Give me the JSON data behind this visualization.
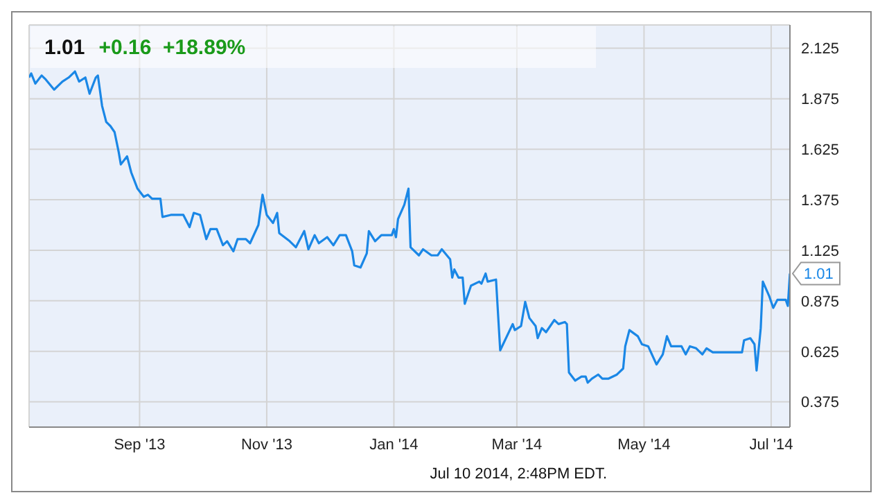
{
  "chart_data": {
    "type": "line",
    "title": "1.01",
    "subtitle": "+0.16  +18.89%",
    "x": [
      "2013-07-10",
      "2013-07-11",
      "2013-07-13",
      "2013-07-16",
      "2013-07-18",
      "2013-07-22",
      "2013-07-26",
      "2013-07-29",
      "2013-08-01",
      "2013-08-03",
      "2013-08-06",
      "2013-08-08",
      "2013-08-11",
      "2013-08-12",
      "2013-08-14",
      "2013-08-16",
      "2013-08-18",
      "2013-08-20",
      "2013-08-22",
      "2013-08-23",
      "2013-08-26",
      "2013-08-28",
      "2013-08-31",
      "2013-09-03",
      "2013-09-05",
      "2013-09-07",
      "2013-09-11",
      "2013-09-12",
      "2013-09-16",
      "2013-09-22",
      "2013-09-25",
      "2013-09-27",
      "2013-09-30",
      "2013-10-03",
      "2013-10-05",
      "2013-10-08",
      "2013-10-11",
      "2013-10-13",
      "2013-10-16",
      "2013-10-18",
      "2013-10-22",
      "2013-10-24",
      "2013-10-28",
      "2013-10-30",
      "2013-11-01",
      "2013-11-04",
      "2013-11-06",
      "2013-11-07",
      "2013-11-12",
      "2013-11-15",
      "2013-11-19",
      "2013-11-21",
      "2013-11-24",
      "2013-11-26",
      "2013-11-30",
      "2013-12-03",
      "2013-12-06",
      "2013-12-09",
      "2013-12-12",
      "2013-12-13",
      "2013-12-16",
      "2013-12-19",
      "2013-12-20",
      "2013-12-23",
      "2013-12-26",
      "2013-12-31",
      "2014-01-01",
      "2014-01-02",
      "2014-01-03",
      "2014-01-06",
      "2014-01-08",
      "2014-01-09",
      "2014-01-13",
      "2014-01-15",
      "2014-01-19",
      "2014-01-22",
      "2014-01-24",
      "2014-01-28",
      "2014-01-29",
      "2014-01-30",
      "2014-02-01",
      "2014-02-03",
      "2014-02-04",
      "2014-02-07",
      "2014-02-11",
      "2014-02-12",
      "2014-02-14",
      "2014-02-15",
      "2014-02-19",
      "2014-02-21",
      "2014-02-27",
      "2014-02-28",
      "2014-03-03",
      "2014-03-05",
      "2014-03-07",
      "2014-03-10",
      "2014-03-11",
      "2014-03-13",
      "2014-03-15",
      "2014-03-17",
      "2014-03-19",
      "2014-03-21",
      "2014-03-24",
      "2014-03-25",
      "2014-03-26",
      "2014-03-29",
      "2014-04-01",
      "2014-04-03",
      "2014-04-04",
      "2014-04-06",
      "2014-04-09",
      "2014-04-11",
      "2014-04-14",
      "2014-04-18",
      "2014-04-21",
      "2014-04-22",
      "2014-04-24",
      "2014-04-28",
      "2014-04-30",
      "2014-05-03",
      "2014-05-07",
      "2014-05-10",
      "2014-05-12",
      "2014-05-14",
      "2014-05-16",
      "2014-05-19",
      "2014-05-21",
      "2014-05-23",
      "2014-05-26",
      "2014-05-29",
      "2014-05-31",
      "2014-06-03",
      "2014-06-08",
      "2014-06-12",
      "2014-06-17",
      "2014-06-18",
      "2014-06-21",
      "2014-06-23",
      "2014-06-24",
      "2014-06-26",
      "2014-06-27",
      "2014-06-30",
      "2014-07-02",
      "2014-07-04",
      "2014-07-08",
      "2014-07-09",
      "2014-07-10"
    ],
    "series": [
      {
        "color": "#1a87e6",
        "values": [
          1.98,
          2.0,
          1.95,
          1.99,
          1.97,
          1.92,
          1.96,
          1.98,
          2.01,
          1.96,
          1.98,
          1.9,
          1.98,
          1.99,
          1.84,
          1.76,
          1.74,
          1.71,
          1.61,
          1.55,
          1.59,
          1.51,
          1.43,
          1.39,
          1.4,
          1.38,
          1.38,
          1.29,
          1.3,
          1.3,
          1.24,
          1.31,
          1.3,
          1.18,
          1.23,
          1.23,
          1.15,
          1.17,
          1.12,
          1.18,
          1.18,
          1.16,
          1.25,
          1.4,
          1.3,
          1.26,
          1.31,
          1.21,
          1.17,
          1.14,
          1.22,
          1.13,
          1.2,
          1.16,
          1.19,
          1.15,
          1.2,
          1.2,
          1.12,
          1.05,
          1.04,
          1.11,
          1.22,
          1.17,
          1.2,
          1.2,
          1.23,
          1.19,
          1.28,
          1.35,
          1.43,
          1.14,
          1.1,
          1.13,
          1.1,
          1.1,
          1.13,
          1.08,
          0.99,
          1.03,
          0.99,
          0.99,
          0.86,
          0.95,
          0.97,
          0.96,
          1.01,
          0.97,
          0.98,
          0.63,
          0.76,
          0.73,
          0.75,
          0.87,
          0.79,
          0.75,
          0.69,
          0.74,
          0.72,
          0.75,
          0.78,
          0.76,
          0.77,
          0.76,
          0.52,
          0.48,
          0.5,
          0.5,
          0.47,
          0.49,
          0.51,
          0.49,
          0.49,
          0.51,
          0.54,
          0.65,
          0.73,
          0.7,
          0.66,
          0.65,
          0.56,
          0.61,
          0.7,
          0.65,
          0.65,
          0.65,
          0.61,
          0.65,
          0.64,
          0.61,
          0.64,
          0.62,
          0.62,
          0.62,
          0.62,
          0.68,
          0.69,
          0.66,
          0.53,
          0.74,
          0.97,
          0.9,
          0.84,
          0.88,
          0.88,
          0.85,
          1.01
        ]
      }
    ],
    "xlim": [
      "2013-07-10",
      "2014-07-10"
    ],
    "xticks": [
      {
        "value": "2013-09-01",
        "label": "Sep '13"
      },
      {
        "value": "2013-11-01",
        "label": "Nov '13"
      },
      {
        "value": "2014-01-01",
        "label": "Jan '14"
      },
      {
        "value": "2014-03-01",
        "label": "Mar '14"
      },
      {
        "value": "2014-05-01",
        "label": "May '14"
      },
      {
        "value": "2014-07-01",
        "label": "Jul '14"
      }
    ],
    "ylim": [
      0.25,
      2.24
    ],
    "yticks": [
      0.375,
      0.625,
      0.875,
      1.125,
      1.375,
      1.625,
      1.875,
      2.125
    ],
    "grid": true,
    "marker": "none",
    "line_style": "solid",
    "legend": false,
    "annotations": [
      {
        "text": "1.01",
        "x": "2014-07-10",
        "y": 1.01
      },
      "Jul 10 2014, 2:48PM EDT."
    ]
  }
}
